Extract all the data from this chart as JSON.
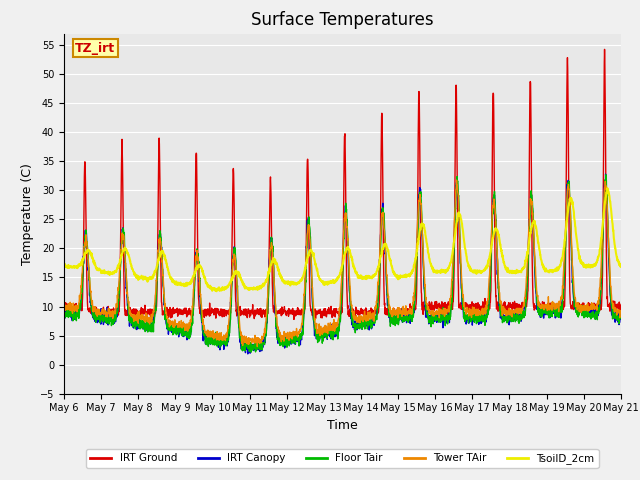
{
  "title": "Surface Temperatures",
  "xlabel": "Time",
  "ylabel": "Temperature (C)",
  "ylim": [
    -5,
    57
  ],
  "yticks": [
    -5,
    0,
    5,
    10,
    15,
    20,
    25,
    30,
    35,
    40,
    45,
    50,
    55
  ],
  "n_days": 16,
  "pts_per_day": 144,
  "legend": [
    {
      "label": "IRT Ground",
      "color": "#dd0000",
      "lw": 1.0
    },
    {
      "label": "IRT Canopy",
      "color": "#0000cc",
      "lw": 1.0
    },
    {
      "label": "Floor Tair",
      "color": "#00bb00",
      "lw": 1.0
    },
    {
      "label": "Tower TAir",
      "color": "#ee8800",
      "lw": 1.0
    },
    {
      "label": "TsoilD_2cm",
      "color": "#eeee00",
      "lw": 1.5
    }
  ],
  "annotation_text": "TZ_irt",
  "annotation_color": "#cc0000",
  "annotation_bg": "#ffffaa",
  "annotation_edge": "#cc8800",
  "background_color": "#e8e8e8",
  "fig_bg_color": "#f0f0f0",
  "grid_color": "#ffffff",
  "title_fontsize": 12,
  "irt_ground_peaks": [
    35,
    35,
    40,
    38,
    36,
    32,
    32,
    39,
    41,
    45,
    49,
    48,
    47,
    51,
    54,
    53
  ],
  "irt_ground_nights": [
    10,
    9,
    9,
    9,
    9,
    9,
    9,
    9,
    9,
    9,
    10,
    10,
    10,
    10,
    10,
    10
  ],
  "canopy_peaks": [
    22,
    23,
    23,
    22,
    18,
    21,
    22,
    27,
    27,
    27,
    32,
    32,
    27,
    31,
    32,
    32
  ],
  "canopy_nights": [
    9,
    8,
    7,
    6,
    4,
    3,
    4,
    5,
    7,
    8,
    8,
    8,
    8,
    9,
    9,
    8
  ],
  "floor_peaks": [
    22,
    23,
    23,
    22,
    18,
    21,
    22,
    27,
    27,
    27,
    32,
    32,
    27,
    31,
    32,
    32
  ],
  "floor_nights": [
    9,
    8,
    7,
    6,
    4,
    3,
    4,
    5,
    7,
    8,
    8,
    8,
    8,
    9,
    9,
    8
  ],
  "tower_peaks": [
    21,
    22,
    22,
    21,
    17,
    20,
    21,
    26,
    26,
    26,
    31,
    31,
    26,
    30,
    31,
    31
  ],
  "tower_nights": [
    10,
    9,
    8,
    7,
    5,
    4,
    5,
    6,
    8,
    9,
    9,
    9,
    9,
    10,
    10,
    9
  ],
  "soil_peaks": [
    19,
    20,
    20,
    19,
    16,
    16,
    19,
    20,
    20,
    21,
    26,
    26,
    22,
    26,
    30,
    30
  ],
  "soil_nights": [
    17,
    16,
    15,
    14,
    13,
    13,
    14,
    14,
    15,
    15,
    16,
    16,
    16,
    16,
    17,
    17
  ]
}
